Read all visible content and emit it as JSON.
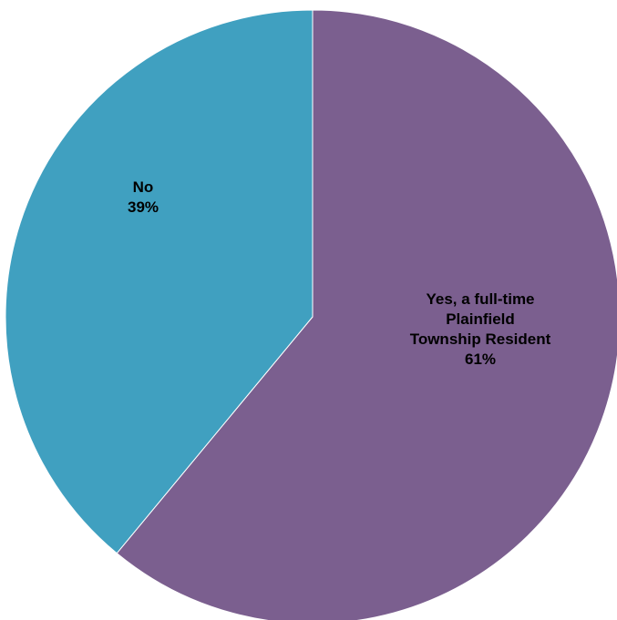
{
  "chart_data": {
    "type": "pie",
    "title": "",
    "start_angle_deg": 0,
    "direction": "clockwise",
    "slices": [
      {
        "label_lines": [
          "Yes, a full-time",
          "Plainfield",
          "Township Resident"
        ],
        "value": 61,
        "value_label": "61%",
        "color": "#7b5f8f"
      },
      {
        "label_lines": [
          "No"
        ],
        "value": 39,
        "value_label": "39%",
        "color": "#40a0c0"
      }
    ],
    "legend": "none",
    "border_color": "#ffffff"
  }
}
